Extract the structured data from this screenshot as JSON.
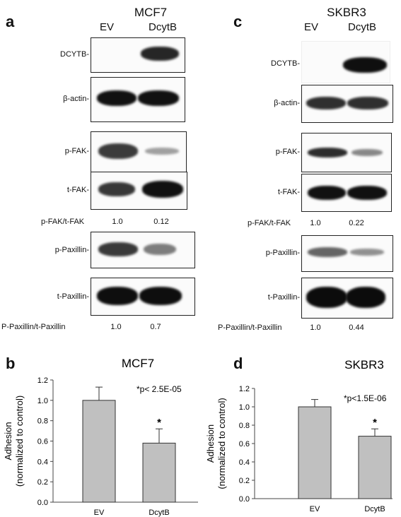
{
  "panels": {
    "a": {
      "letter": "a",
      "cell_line": "MCF7",
      "lanes": [
        "EV",
        "DcytB"
      ],
      "blots": [
        {
          "label": "DCYTB-",
          "bands": [
            0,
            0.85
          ]
        },
        {
          "label": "β-actin-",
          "bands": [
            0.95,
            0.95
          ]
        },
        {
          "label": "p-FAK-",
          "bands": [
            0.9,
            0.3
          ]
        },
        {
          "label": "t-FAK-",
          "bands": [
            0.85,
            0.95
          ]
        },
        {
          "label": "p-Paxillin-",
          "bands": [
            0.85,
            0.55
          ]
        },
        {
          "label": "t-Paxillin-",
          "bands": [
            1,
            1
          ]
        }
      ],
      "quant": [
        {
          "label": "p-FAK/t-FAK",
          "values": [
            "1.0",
            "0.12"
          ]
        },
        {
          "label": "P-Paxillin/t-Paxillin",
          "values": [
            "1.0",
            "0.7"
          ]
        }
      ]
    },
    "c": {
      "letter": "c",
      "cell_line": "SKBR3",
      "lanes": [
        "EV",
        "DcytB"
      ],
      "blots": [
        {
          "label": "DCYTB-",
          "bands": [
            0,
            0.95
          ]
        },
        {
          "label": "β-actin-",
          "bands": [
            0.85,
            0.85
          ]
        },
        {
          "label": "p-FAK-",
          "bands": [
            0.85,
            0.35
          ]
        },
        {
          "label": "t-FAK-",
          "bands": [
            0.9,
            0.9
          ]
        },
        {
          "label": "p-Paxillin-",
          "bands": [
            0.6,
            0.35
          ]
        },
        {
          "label": "t-Paxillin-",
          "bands": [
            1,
            1
          ]
        }
      ],
      "quant": [
        {
          "label": "p-FAK/t-FAK",
          "values": [
            "1.0",
            "0.22"
          ]
        },
        {
          "label": "P-Paxillin/t-Paxillin",
          "values": [
            "1.0",
            "0.44"
          ]
        }
      ]
    }
  },
  "chart_data": [
    {
      "panel": "b",
      "type": "bar",
      "title": "MCF7",
      "ylabel_line1": "Adhesion",
      "ylabel_line2": "(normalized to control)",
      "categories": [
        "EV",
        "DcytB"
      ],
      "values": [
        1.0,
        0.58
      ],
      "errors": [
        0.13,
        0.14
      ],
      "significance": [
        "",
        "*"
      ],
      "annotation": "*p< 2.5E-05",
      "ylim": [
        0,
        1.2
      ],
      "yticks": [
        "0.0",
        "0.2",
        "0.4",
        "0.6",
        "0.8",
        "1.0",
        "1.2"
      ],
      "bar_color": "#c0c0c0"
    },
    {
      "panel": "d",
      "type": "bar",
      "title": "SKBR3",
      "ylabel_line1": "Adhesion",
      "ylabel_line2": "(normalized to control)",
      "categories": [
        "EV",
        "DcytB"
      ],
      "values": [
        1.0,
        0.68
      ],
      "errors": [
        0.08,
        0.08
      ],
      "significance": [
        "",
        "*"
      ],
      "annotation": "*p<1.5E-06",
      "ylim": [
        0,
        1.2
      ],
      "yticks": [
        "0.0",
        "0.2",
        "0.4",
        "0.6",
        "0.8",
        "1.0",
        "1.2"
      ],
      "bar_color": "#c0c0c0"
    }
  ]
}
